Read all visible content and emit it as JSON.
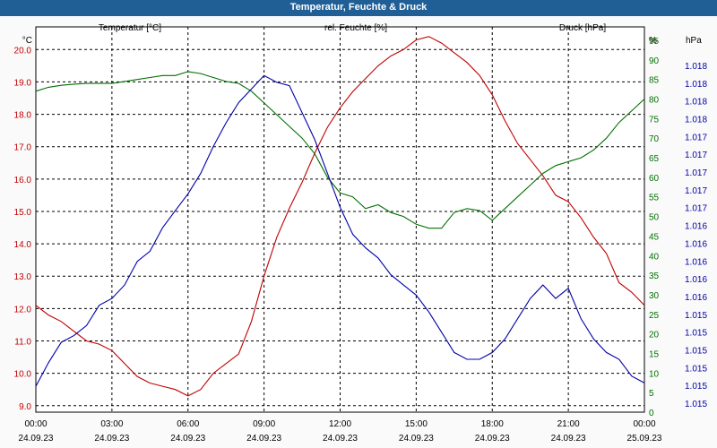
{
  "title": "Temperatur, Feuchte & Druck",
  "colors": {
    "temperature": "#c00000",
    "humidity": "#007000",
    "pressure": "#0000a8",
    "title_bg": "#1f5f96"
  },
  "chart_data": {
    "type": "line",
    "title": "Temperatur, Feuchte & Druck",
    "grid": true,
    "x_ticks": [
      {
        "time": "00:00",
        "date": "24.09.23"
      },
      {
        "time": "03:00",
        "date": "24.09.23"
      },
      {
        "time": "06:00",
        "date": "24.09.23"
      },
      {
        "time": "09:00",
        "date": "24.09.23"
      },
      {
        "time": "12:00",
        "date": "24.09.23"
      },
      {
        "time": "15:00",
        "date": "24.09.23"
      },
      {
        "time": "18:00",
        "date": "24.09.23"
      },
      {
        "time": "21:00",
        "date": "24.09.23"
      },
      {
        "time": "00:00",
        "date": "25.09.23"
      }
    ],
    "x_range_hours": [
      0,
      24
    ],
    "axes": {
      "left": {
        "series": "temperature",
        "unit_label": "°C",
        "ylim": [
          8.8,
          20.7
        ],
        "ticks": [
          "9.0",
          "10.0",
          "11.0",
          "12.0",
          "13.0",
          "14.0",
          "15.0",
          "16.0",
          "17.0",
          "18.0",
          "19.0",
          "20.0"
        ]
      },
      "right1": {
        "series": "humidity",
        "unit_label": "%",
        "ylim": [
          0,
          95
        ],
        "ticks": [
          "0",
          "5",
          "10",
          "15",
          "20",
          "25",
          "30",
          "35",
          "40",
          "45",
          "50",
          "55",
          "60",
          "65",
          "70",
          "75",
          "80",
          "85",
          "90",
          "95"
        ]
      },
      "right2": {
        "series": "pressure",
        "unit_label": "hPa",
        "ylim": [
          0,
          1
        ],
        "ticks": [
          "1.015",
          "1.015",
          "1.015",
          "1.015",
          "1.015",
          "1.015",
          "1.016",
          "1.016",
          "1.016",
          "1.016",
          "1.016",
          "1.017",
          "1.017",
          "1.017",
          "1.017",
          "1.017",
          "1.018",
          "1.018",
          "1.018",
          "1.018"
        ]
      }
    },
    "series": [
      {
        "key": "temperature",
        "name": "Temperatur [°C]",
        "axis": "left",
        "x": [
          0,
          0.5,
          1,
          1.5,
          2,
          2.5,
          3,
          3.5,
          4,
          4.5,
          5,
          5.5,
          6,
          6.5,
          7,
          7.5,
          8,
          8.5,
          9,
          9.5,
          10,
          10.5,
          11,
          11.5,
          12,
          12.5,
          13,
          13.5,
          14,
          14.5,
          15,
          15.5,
          16,
          16.5,
          17,
          17.5,
          18,
          18.5,
          19,
          19.5,
          20,
          20.5,
          21,
          21.5,
          22,
          22.5,
          23,
          23.5,
          24
        ],
        "values": [
          12.1,
          11.8,
          11.6,
          11.3,
          11.0,
          10.9,
          10.7,
          10.3,
          9.9,
          9.7,
          9.6,
          9.5,
          9.3,
          9.5,
          10.0,
          10.3,
          10.6,
          11.6,
          13.0,
          14.2,
          15.1,
          15.9,
          16.8,
          17.6,
          18.2,
          18.7,
          19.1,
          19.5,
          19.8,
          20.0,
          20.3,
          20.4,
          20.2,
          19.9,
          19.6,
          19.2,
          18.6,
          17.8,
          17.1,
          16.6,
          16.1,
          15.5,
          15.3,
          14.8,
          14.2,
          13.7,
          12.8,
          12.5,
          12.1
        ]
      },
      {
        "key": "humidity",
        "name": "rel. Feuchte [%]",
        "axis": "right1",
        "x": [
          0,
          0.5,
          1,
          1.5,
          2,
          2.5,
          3,
          3.5,
          4,
          4.5,
          5,
          5.5,
          6,
          6.5,
          7,
          7.5,
          8,
          8.5,
          9,
          9.5,
          10,
          10.5,
          11,
          11.5,
          12,
          12.5,
          13,
          13.5,
          14,
          14.5,
          15,
          15.5,
          16,
          16.5,
          17,
          17.5,
          18,
          18.5,
          19,
          19.5,
          20,
          20.5,
          21,
          21.5,
          22,
          22.5,
          23,
          23.5,
          24
        ],
        "values": [
          82,
          83,
          83.5,
          83.8,
          84,
          84,
          84,
          84.5,
          85,
          85.5,
          86,
          86,
          87,
          86.5,
          85.5,
          84.5,
          84,
          82,
          79,
          76,
          73,
          70,
          66,
          60,
          56,
          55,
          52,
          53,
          51,
          50,
          48,
          47,
          47,
          51,
          52,
          51.5,
          49,
          52,
          55,
          58,
          61,
          63,
          64,
          65,
          67,
          70,
          74,
          77,
          80
        ]
      },
      {
        "key": "pressure",
        "name": "Druck [hPa]",
        "axis": "right2",
        "x": [
          0,
          0.5,
          1,
          1.5,
          2,
          2.5,
          3,
          3.5,
          4,
          4.5,
          5,
          5.5,
          6,
          6.5,
          7,
          7.5,
          8,
          8.5,
          9,
          9.5,
          10,
          10.5,
          11,
          11.5,
          12,
          12.5,
          13,
          13.5,
          14,
          14.5,
          15,
          15.5,
          16,
          16.5,
          17,
          17.5,
          18,
          18.5,
          19,
          19.5,
          20,
          20.5,
          21,
          21.5,
          22,
          22.5,
          23,
          23.5,
          24
        ],
        "values": [
          0.05,
          0.12,
          0.18,
          0.2,
          0.23,
          0.29,
          0.31,
          0.35,
          0.42,
          0.45,
          0.52,
          0.57,
          0.62,
          0.68,
          0.76,
          0.83,
          0.89,
          0.93,
          0.97,
          0.95,
          0.94,
          0.86,
          0.78,
          0.68,
          0.58,
          0.5,
          0.46,
          0.43,
          0.38,
          0.35,
          0.32,
          0.27,
          0.21,
          0.15,
          0.13,
          0.13,
          0.15,
          0.19,
          0.25,
          0.31,
          0.35,
          0.31,
          0.34,
          0.25,
          0.19,
          0.15,
          0.13,
          0.08,
          0.06
        ]
      }
    ]
  }
}
